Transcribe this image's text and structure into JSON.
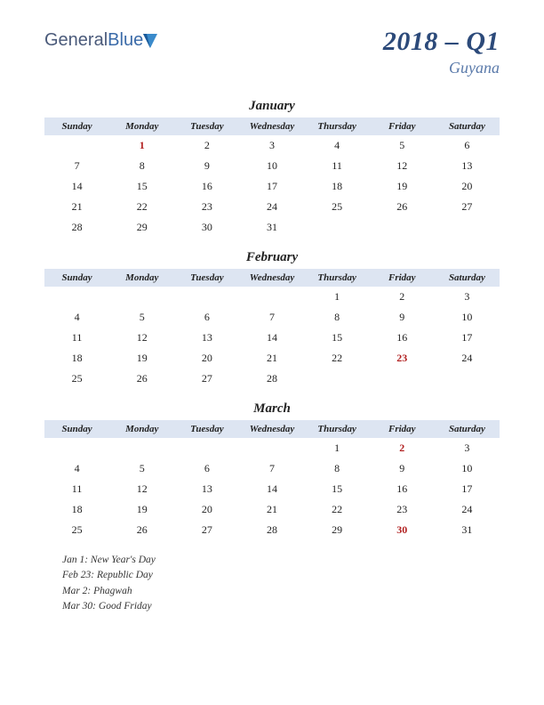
{
  "logo": {
    "word1": "General",
    "word2": "Blue"
  },
  "title": "2018 – Q1",
  "country": "Guyana",
  "dayHeaders": [
    "Sunday",
    "Monday",
    "Tuesday",
    "Wednesday",
    "Thursday",
    "Friday",
    "Saturday"
  ],
  "header_bg": "#dde5f2",
  "holiday_color": "#b22222",
  "months": [
    {
      "name": "January",
      "weeks": [
        [
          "",
          "1",
          "2",
          "3",
          "4",
          "5",
          "6"
        ],
        [
          "7",
          "8",
          "9",
          "10",
          "11",
          "12",
          "13"
        ],
        [
          "14",
          "15",
          "16",
          "17",
          "18",
          "19",
          "20"
        ],
        [
          "21",
          "22",
          "23",
          "24",
          "25",
          "26",
          "27"
        ],
        [
          "28",
          "29",
          "30",
          "31",
          "",
          "",
          ""
        ]
      ],
      "holidays": [
        "1"
      ]
    },
    {
      "name": "February",
      "weeks": [
        [
          "",
          "",
          "",
          "",
          "1",
          "2",
          "3"
        ],
        [
          "4",
          "5",
          "6",
          "7",
          "8",
          "9",
          "10"
        ],
        [
          "11",
          "12",
          "13",
          "14",
          "15",
          "16",
          "17"
        ],
        [
          "18",
          "19",
          "20",
          "21",
          "22",
          "23",
          "24"
        ],
        [
          "25",
          "26",
          "27",
          "28",
          "",
          "",
          ""
        ]
      ],
      "holidays": [
        "23"
      ]
    },
    {
      "name": "March",
      "weeks": [
        [
          "",
          "",
          "",
          "",
          "1",
          "2",
          "3"
        ],
        [
          "4",
          "5",
          "6",
          "7",
          "8",
          "9",
          "10"
        ],
        [
          "11",
          "12",
          "13",
          "14",
          "15",
          "16",
          "17"
        ],
        [
          "18",
          "19",
          "20",
          "21",
          "22",
          "23",
          "24"
        ],
        [
          "25",
          "26",
          "27",
          "28",
          "29",
          "30",
          "31"
        ]
      ],
      "holidays": [
        "2",
        "30"
      ]
    }
  ],
  "holidayList": [
    "Jan 1: New Year's Day",
    "Feb 23: Republic Day",
    "Mar 2: Phagwah",
    "Mar 30: Good Friday"
  ]
}
